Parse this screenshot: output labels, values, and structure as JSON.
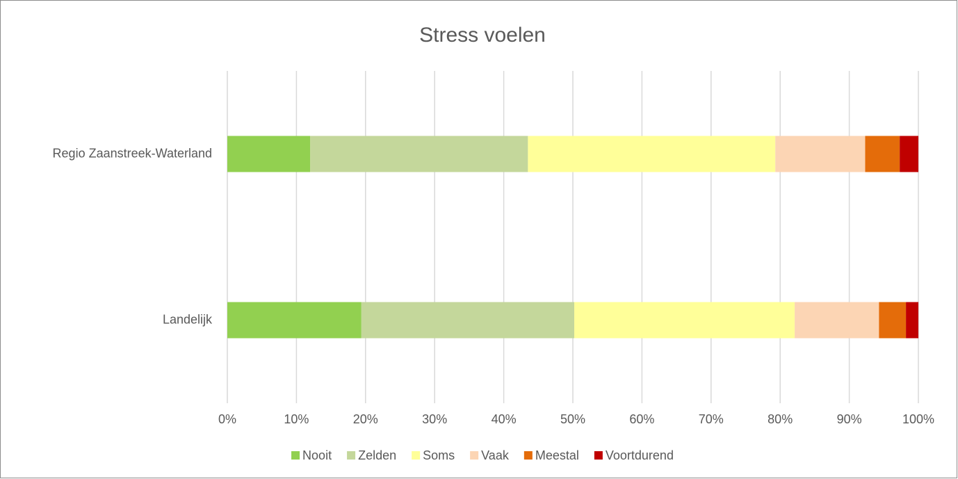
{
  "chart_data": {
    "type": "stacked-barh",
    "title": "Stress voelen",
    "categories": [
      "Regio Zaanstreek-Waterland",
      "Landelijk"
    ],
    "series": [
      {
        "name": "Nooit",
        "color": "#92d050",
        "values": [
          12,
          19.4
        ]
      },
      {
        "name": "Zelden",
        "color": "#c4d79b",
        "values": [
          31.5,
          30.8
        ]
      },
      {
        "name": "Soms",
        "color": "#ffff99",
        "values": [
          35.8,
          31.9
        ]
      },
      {
        "name": "Vaak",
        "color": "#fcd5b4",
        "values": [
          13,
          12.2
        ]
      },
      {
        "name": "Meestal",
        "color": "#e46c0a",
        "values": [
          5,
          3.9
        ]
      },
      {
        "name": "Voortdurend",
        "color": "#c00000",
        "values": [
          2.7,
          1.8
        ]
      }
    ],
    "xlim": [
      0,
      100
    ],
    "xticks": [
      {
        "value": 0,
        "label": "0%"
      },
      {
        "value": 10,
        "label": "10%"
      },
      {
        "value": 20,
        "label": "20%"
      },
      {
        "value": 30,
        "label": "30%"
      },
      {
        "value": 40,
        "label": "40%"
      },
      {
        "value": 50,
        "label": "50%"
      },
      {
        "value": 60,
        "label": "60%"
      },
      {
        "value": 70,
        "label": "70%"
      },
      {
        "value": 80,
        "label": "80%"
      },
      {
        "value": 90,
        "label": "90%"
      },
      {
        "value": 100,
        "label": "100%"
      }
    ],
    "grid": true,
    "legend": "bottom"
  }
}
